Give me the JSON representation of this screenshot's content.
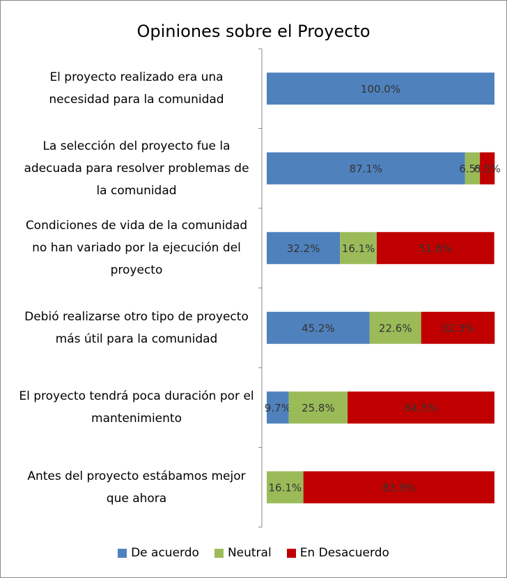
{
  "chart_data": {
    "type": "stacked_barh",
    "title": "Opiniones sobre el Proyecto",
    "categories": [
      "El proyecto realizado era una necesidad para la comunidad",
      "La selección del proyecto fue la adecuada para resolver problemas de la comunidad",
      "Condiciones de vida de la comunidad no han variado por la ejecución del proyecto",
      "Debió realizarse otro tipo de proyecto más útil para la comunidad",
      "El proyecto tendrá poca duración por el mantenimiento",
      "Antes del proyecto estábamos mejor que ahora"
    ],
    "xlim": [
      0,
      100
    ],
    "legend": "bottom",
    "series": [
      {
        "name": "De acuerdo",
        "color": "#4f81bd",
        "values": [
          100.0,
          87.1,
          32.2,
          45.2,
          9.7,
          0
        ],
        "value_labels": [
          "100.0%",
          "87.1%",
          "32.2%",
          "45.2%",
          "9.7%",
          null
        ]
      },
      {
        "name": "Neutral",
        "color": "#9bbb59",
        "values": [
          0,
          6.5,
          16.1,
          22.6,
          25.8,
          16.1
        ],
        "value_labels": [
          null,
          "6.5%",
          "16.1%",
          "22.6%",
          "25.8%",
          "16.1%"
        ]
      },
      {
        "name": "En Desacuerdo",
        "color": "#c00000",
        "values": [
          0,
          6.5,
          51.6,
          32.3,
          64.5,
          83.9
        ],
        "value_labels": [
          null,
          "6.5%",
          "51.6%",
          "32.3%",
          "64.5%",
          "83.9%"
        ]
      }
    ]
  }
}
